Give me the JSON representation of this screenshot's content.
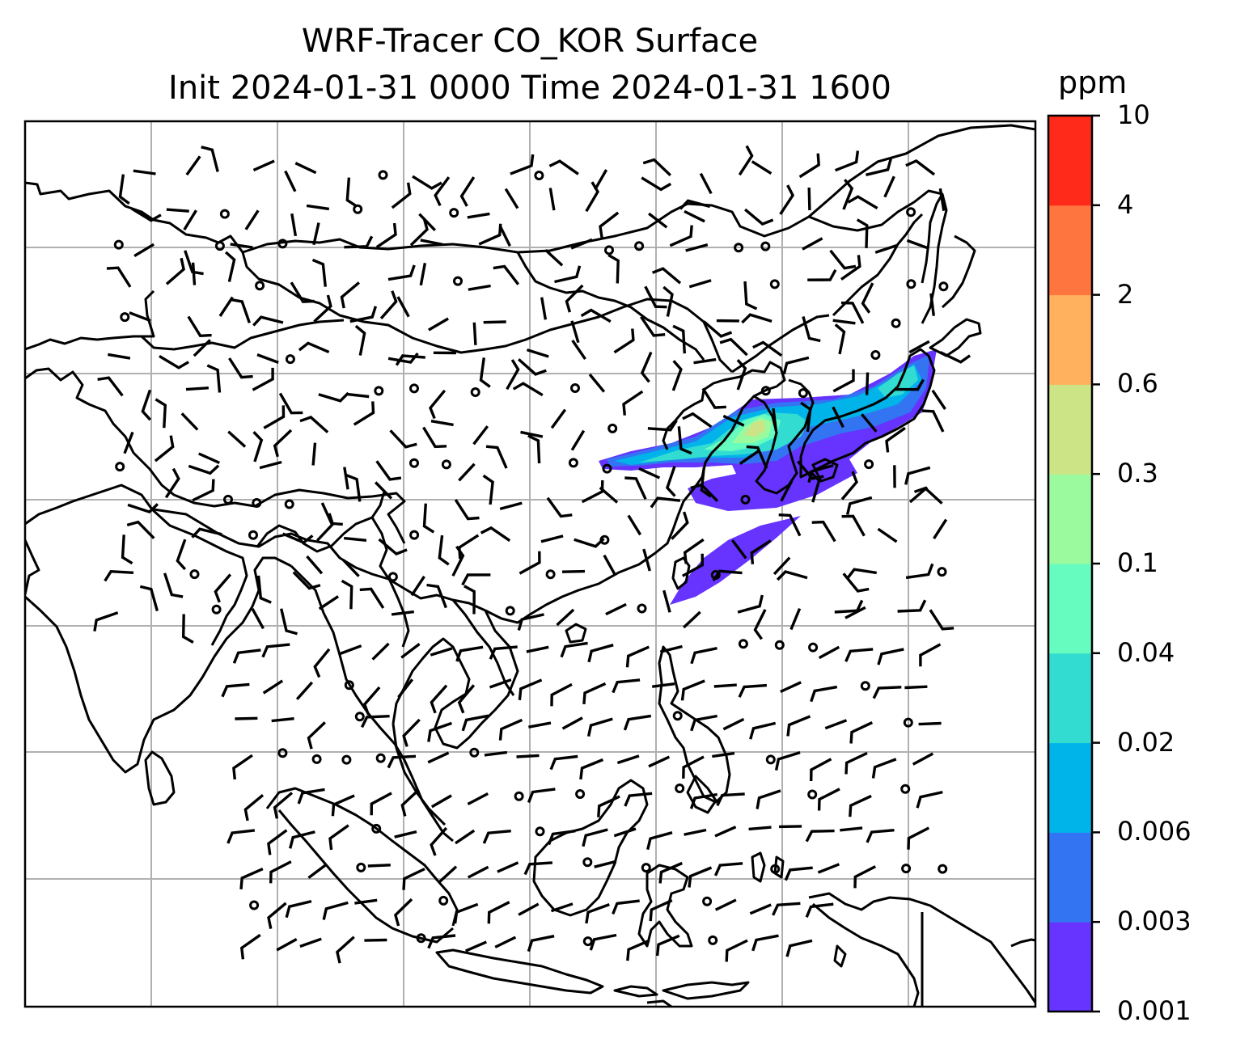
{
  "title": {
    "line1": "WRF-Tracer CO_KOR Surface",
    "line2": "Init 2024-01-31 0000 Time 2024-01-31 1600"
  },
  "colorbar": {
    "unit": "ppm",
    "levels": [
      "0.001",
      "0.003",
      "0.006",
      "0.02",
      "0.04",
      "0.1",
      "0.3",
      "0.6",
      "2",
      "4",
      "10"
    ],
    "colors": [
      "#6633ff",
      "#3374f3",
      "#00b4ea",
      "#32dcd1",
      "#66fcc0",
      "#9cfa9e",
      "#cde486",
      "#ffb15e",
      "#ff7540",
      "#ff2a1a"
    ]
  },
  "map": {
    "frame_color": "#000000",
    "gridline_color": "#b0b0b0",
    "coastline_color": "#000000",
    "wind_barb_color": "#000000"
  }
}
